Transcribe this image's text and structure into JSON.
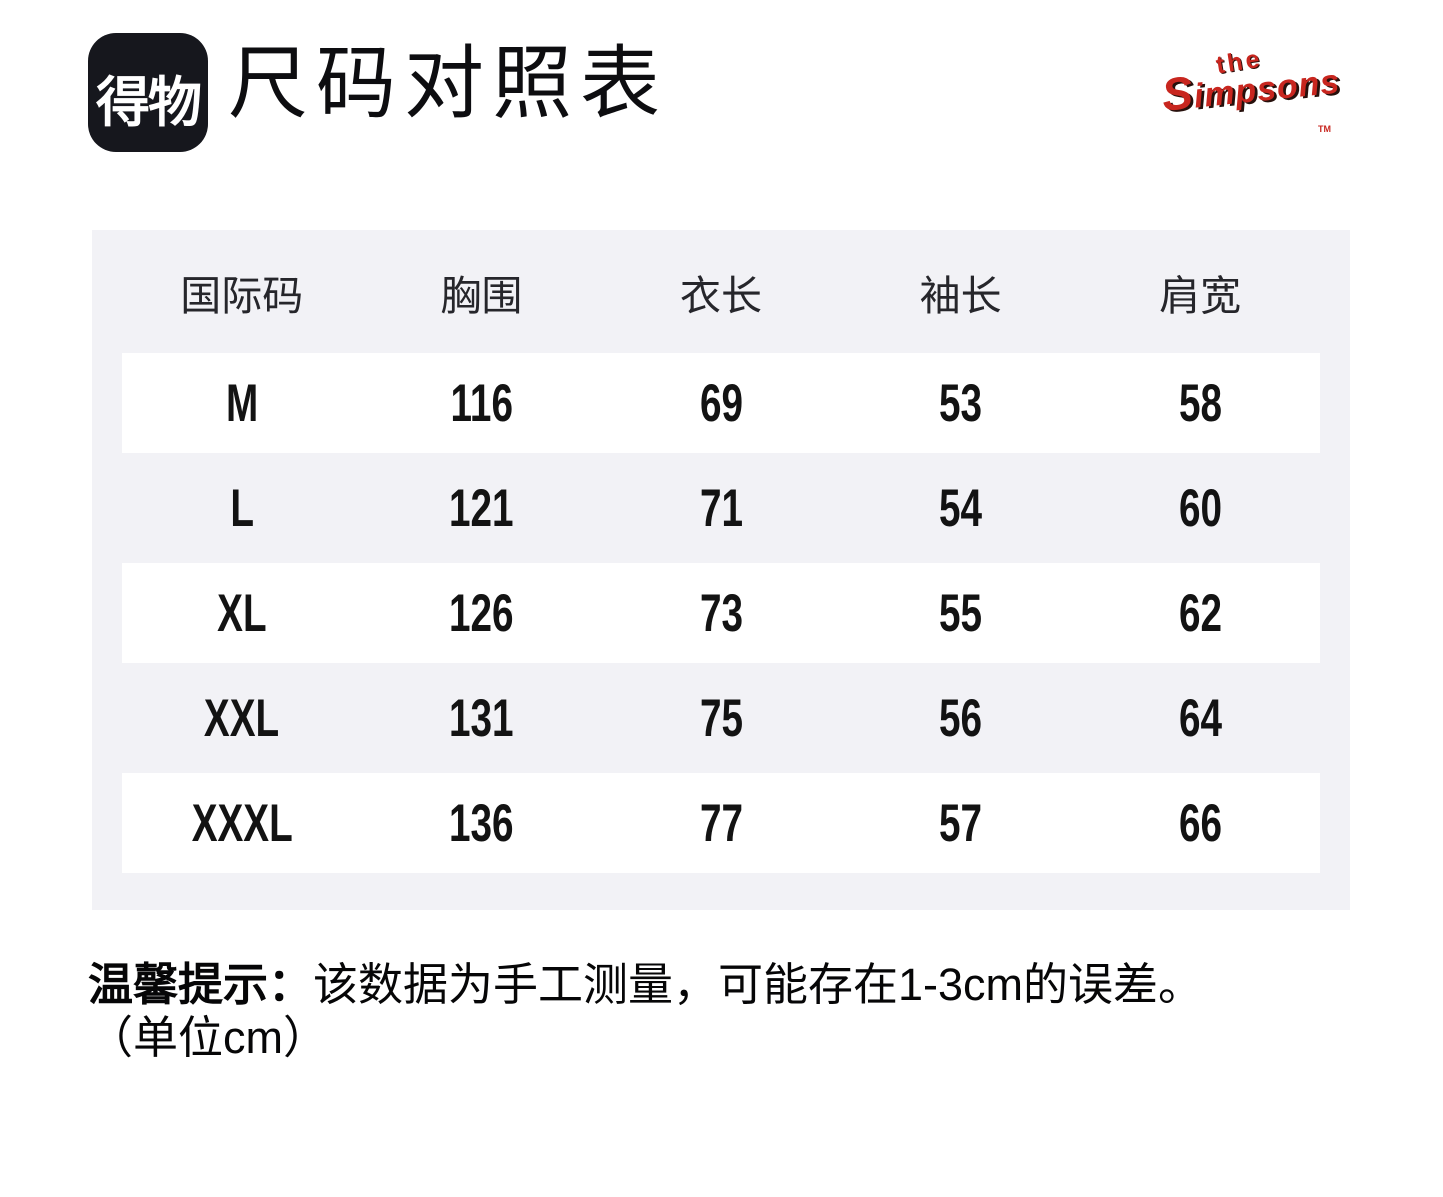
{
  "header": {
    "app_logo_text": "得物",
    "title": "尺码对照表",
    "brand": {
      "line1": "the",
      "line2": "Simpsons",
      "tm": "TM"
    }
  },
  "table": {
    "columns": [
      "国际码",
      "胸围",
      "衣长",
      "袖长",
      "肩宽"
    ],
    "rows": [
      {
        "size": "M",
        "values": [
          "116",
          "69",
          "53",
          "58"
        ]
      },
      {
        "size": "L",
        "values": [
          "121",
          "71",
          "54",
          "60"
        ]
      },
      {
        "size": "XL",
        "values": [
          "126",
          "73",
          "55",
          "62"
        ]
      },
      {
        "size": "XXL",
        "values": [
          "131",
          "75",
          "56",
          "64"
        ]
      },
      {
        "size": "XXXL",
        "values": [
          "136",
          "77",
          "57",
          "66"
        ]
      }
    ]
  },
  "footnote": {
    "emphasis": "温馨提示：",
    "text": "该数据为手工测量，可能存在1-3cm的误差。",
    "unit_note": "（单位cm）"
  },
  "colors": {
    "accent_red": "#c8261f",
    "card_bg": "#f2f2f6",
    "logo_bg": "#16171d"
  }
}
